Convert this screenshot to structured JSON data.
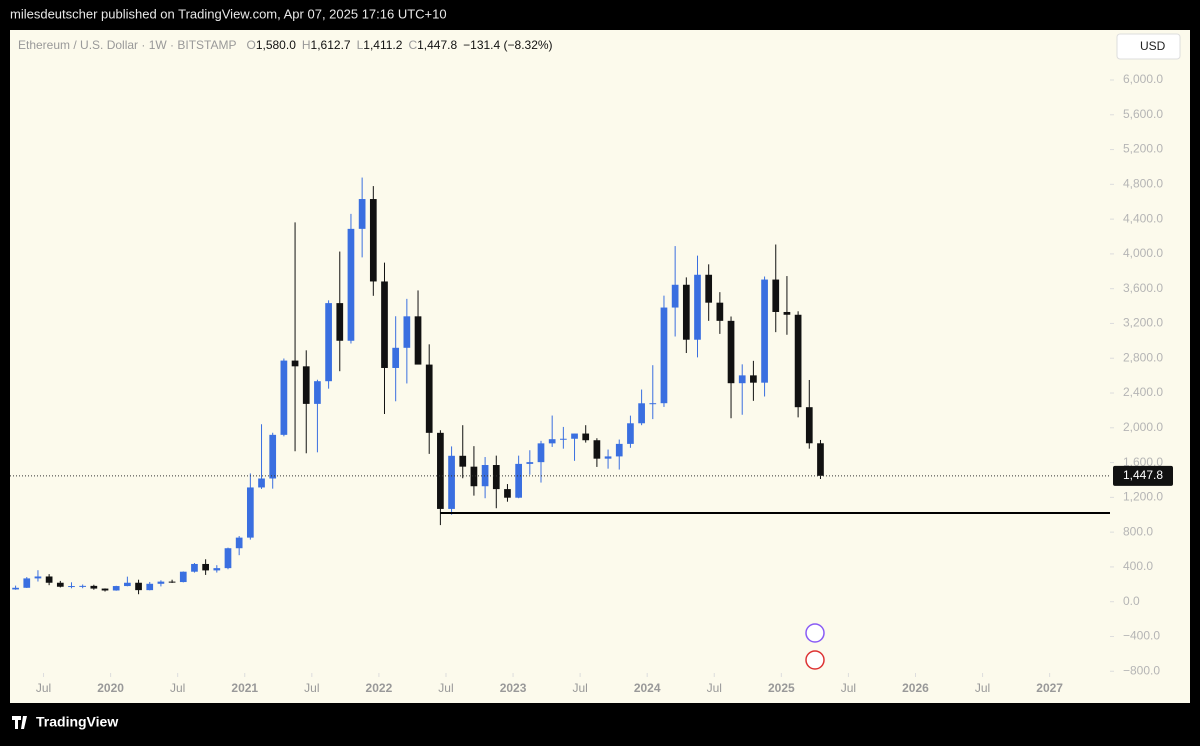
{
  "page": {
    "top_bar": "milesdeutscher published on TradingView.com, Apr 07, 2025 17:16 UTC+10",
    "footer": "TradingView"
  },
  "chart_data": {
    "type": "candlestick",
    "legend": {
      "symbol": "Ethereum / U.S. Dollar · 1W · BITSTAMP",
      "items": [
        {
          "key": "O",
          "value": "1,580.0"
        },
        {
          "key": "H",
          "value": "1,612.7"
        },
        {
          "key": "L",
          "value": "1,411.2"
        },
        {
          "key": "C",
          "value": "1,447.8"
        }
      ],
      "change": "−131.4 (−8.32%)"
    },
    "currency": "USD",
    "x": [
      "2019-04",
      "2019-05",
      "2019-06",
      "2019-07",
      "2019-08",
      "2019-09",
      "2019-10",
      "2019-11",
      "2019-12",
      "2020-01",
      "2020-02",
      "2020-03",
      "2020-04",
      "2020-05",
      "2020-06",
      "2020-07",
      "2020-08",
      "2020-09",
      "2020-10",
      "2020-11",
      "2020-12",
      "2021-01",
      "2021-02",
      "2021-03",
      "2021-04",
      "2021-05",
      "2021-06",
      "2021-07",
      "2021-08",
      "2021-09",
      "2021-10",
      "2021-11",
      "2021-12",
      "2022-01",
      "2022-02",
      "2022-03",
      "2022-04",
      "2022-05",
      "2022-06",
      "2022-07",
      "2022-08",
      "2022-09",
      "2022-10",
      "2022-11",
      "2022-12",
      "2023-01",
      "2023-02",
      "2023-03",
      "2023-04",
      "2023-05",
      "2023-06",
      "2023-07",
      "2023-08",
      "2023-09",
      "2023-10",
      "2023-11",
      "2023-12",
      "2024-01",
      "2024-02",
      "2024-03",
      "2024-04",
      "2024-05",
      "2024-06",
      "2024-07",
      "2024-08",
      "2024-09",
      "2024-10",
      "2024-11",
      "2024-12",
      "2025-01",
      "2025-02",
      "2025-03",
      "2025-04"
    ],
    "open": [
      141,
      160,
      268,
      290,
      218,
      172,
      180,
      182,
      151,
      129,
      180,
      218,
      133,
      206,
      231,
      226,
      345,
      434,
      360,
      386,
      615,
      737,
      1314,
      1417,
      1919,
      2773,
      2707,
      2275,
      2536,
      3434,
      3001,
      4288,
      4631,
      3683,
      2688,
      2920,
      3282,
      2727,
      1942,
      1067,
      1678,
      1553,
      1328,
      1572,
      1295,
      1196,
      1585,
      1605,
      1821,
      1869,
      1874,
      1934,
      1857,
      1645,
      1671,
      1815,
      2052,
      2282,
      2283,
      3383,
      3645,
      3013,
      3760,
      3439,
      3230,
      2513,
      2603,
      2519,
      3705,
      3332,
      3300,
      2237,
      1822
    ],
    "high": [
      185,
      283,
      362,
      317,
      239,
      223,
      198,
      195,
      153,
      183,
      288,
      253,
      227,
      246,
      253,
      348,
      445,
      488,
      420,
      622,
      755,
      1475,
      2041,
      1943,
      2797,
      4362,
      2891,
      2553,
      3466,
      4027,
      4460,
      4878,
      4780,
      3900,
      3283,
      3483,
      3580,
      2960,
      1972,
      1786,
      2030,
      1789,
      1664,
      1680,
      1353,
      1680,
      1742,
      1850,
      2141,
      2010,
      1934,
      2030,
      1880,
      1750,
      1865,
      2140,
      2440,
      2720,
      3520,
      4090,
      3730,
      3980,
      3880,
      3560,
      3280,
      2730,
      2770,
      3740,
      4108,
      3745,
      3340,
      2550,
      1860
    ],
    "low": [
      137,
      158,
      232,
      190,
      164,
      154,
      155,
      138,
      117,
      126,
      177,
      86,
      131,
      176,
      216,
      222,
      335,
      308,
      335,
      373,
      535,
      714,
      1297,
      1300,
      1902,
      1730,
      1707,
      1718,
      2450,
      2651,
      2970,
      3960,
      3518,
      2159,
      2305,
      2510,
      2790,
      1700,
      881,
      1000,
      1420,
      1220,
      1190,
      1075,
      1150,
      1190,
      1460,
      1370,
      1780,
      1760,
      1620,
      1830,
      1550,
      1530,
      1520,
      1770,
      2030,
      2100,
      2240,
      3050,
      2860,
      2810,
      3230,
      3080,
      2110,
      2150,
      2310,
      2360,
      3100,
      3070,
      2120,
      1760,
      1411
    ],
    "close": [
      160,
      268,
      290,
      218,
      172,
      180,
      182,
      151,
      129,
      180,
      218,
      133,
      206,
      231,
      226,
      345,
      434,
      360,
      386,
      615,
      737,
      1314,
      1417,
      1919,
      2773,
      2707,
      2275,
      2536,
      3434,
      3001,
      4288,
      4631,
      3683,
      2688,
      2920,
      3282,
      2727,
      1942,
      1067,
      1678,
      1553,
      1328,
      1572,
      1295,
      1196,
      1585,
      1605,
      1821,
      1869,
      1874,
      1934,
      1857,
      1645,
      1671,
      1815,
      2052,
      2282,
      2283,
      3383,
      3645,
      3013,
      3760,
      3439,
      3230,
      2513,
      2603,
      2519,
      3705,
      3332,
      3300,
      2237,
      1822,
      1448
    ],
    "up_color": "#3a6fe0",
    "down_color": "#111111",
    "support_line": {
      "value": 1020,
      "from": "2022-06"
    },
    "last_price": {
      "value": 1447.8,
      "label": "1,447.8"
    },
    "xlim": [
      2019.25,
      2027.45
    ],
    "xticks": [
      {
        "value": 2019.5,
        "label": "Jul"
      },
      {
        "value": 2020,
        "label": "2020"
      },
      {
        "value": 2020.5,
        "label": "Jul"
      },
      {
        "value": 2021,
        "label": "2021"
      },
      {
        "value": 2021.5,
        "label": "Jul"
      },
      {
        "value": 2022,
        "label": "2022"
      },
      {
        "value": 2022.5,
        "label": "Jul"
      },
      {
        "value": 2023,
        "label": "2023"
      },
      {
        "value": 2023.5,
        "label": "Jul"
      },
      {
        "value": 2024,
        "label": "2024"
      },
      {
        "value": 2024.5,
        "label": "Jul"
      },
      {
        "value": 2025,
        "label": "2025"
      },
      {
        "value": 2025.5,
        "label": "Jul"
      },
      {
        "value": 2026,
        "label": "2026"
      },
      {
        "value": 2026.5,
        "label": "Jul"
      },
      {
        "value": 2027,
        "label": "2027"
      }
    ],
    "ylim": [
      -820,
      6575
    ],
    "yticks": [
      {
        "value": -800,
        "label": "−800.0"
      },
      {
        "value": -400,
        "label": "−400.0"
      },
      {
        "value": 0,
        "label": "0.0"
      },
      {
        "value": 400,
        "label": "400.0"
      },
      {
        "value": 800,
        "label": "800.0"
      },
      {
        "value": 1200,
        "label": "1,200.0"
      },
      {
        "value": 1600,
        "label": "1,600.0"
      },
      {
        "value": 2000,
        "label": "2,000.0"
      },
      {
        "value": 2400,
        "label": "2,400.0"
      },
      {
        "value": 2800,
        "label": "2,800.0"
      },
      {
        "value": 3200,
        "label": "3,200.0"
      },
      {
        "value": 3600,
        "label": "3,600.0"
      },
      {
        "value": 4000,
        "label": "4,000.0"
      },
      {
        "value": 4400,
        "label": "4,400.0"
      },
      {
        "value": 4800,
        "label": "4,800.0"
      },
      {
        "value": 5200,
        "label": "5,200.0"
      },
      {
        "value": 5600,
        "label": "5,600.0"
      },
      {
        "value": 6000,
        "label": "6,000.0"
      }
    ]
  }
}
